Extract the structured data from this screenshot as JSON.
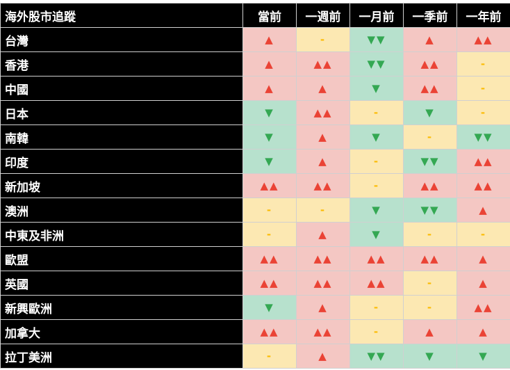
{
  "header": {
    "title": "海外股市追蹤",
    "columns": [
      "當前",
      "一週前",
      "一月前",
      "一季前",
      "一年前"
    ]
  },
  "colors": {
    "up_bg": "#f4c7c3",
    "up": "#ea4335",
    "down_bg": "#b7e1cd",
    "down": "#34a853",
    "flat_bg": "#fce8b2",
    "flat": "#fbbc04"
  },
  "rows": [
    {
      "market": "台灣",
      "values": [
        "▲",
        "-",
        "▼▼",
        "▲",
        "▲▲"
      ]
    },
    {
      "market": "香港",
      "values": [
        "▲",
        "▲▲",
        "▼▼",
        "▲▲",
        "-"
      ]
    },
    {
      "market": "中國",
      "values": [
        "▲",
        "▲",
        "▼",
        "▲▲",
        "-"
      ]
    },
    {
      "market": "日本",
      "values": [
        "▼",
        "▲▲",
        "-",
        "▼",
        "-"
      ]
    },
    {
      "market": "南韓",
      "values": [
        "▼",
        "▲",
        "▼",
        "-",
        "▼▼"
      ]
    },
    {
      "market": "印度",
      "values": [
        "▼",
        "▲",
        "-",
        "▼▼",
        "▲▲"
      ]
    },
    {
      "market": "新加坡",
      "values": [
        "▲▲",
        "▲▲",
        "-",
        "▲▲",
        "▲▲"
      ]
    },
    {
      "market": "澳洲",
      "values": [
        "-",
        "-",
        "▼",
        "▼▼",
        "▲"
      ]
    },
    {
      "market": "中東及非洲",
      "values": [
        "-",
        "▲",
        "▼",
        "-",
        "-"
      ]
    },
    {
      "market": "歐盟",
      "values": [
        "▲▲",
        "▲▲",
        "▲▲",
        "▲▲",
        "▲"
      ]
    },
    {
      "market": "英國",
      "values": [
        "▲▲",
        "▲▲",
        "▲▲",
        "-",
        "▲"
      ]
    },
    {
      "market": "新興歐洲",
      "values": [
        "▼",
        "▲",
        "-",
        "-",
        "▲▲"
      ]
    },
    {
      "market": "加拿大",
      "values": [
        "▲▲",
        "▲▲",
        "-",
        "▲",
        "▲"
      ]
    },
    {
      "market": "拉丁美洲",
      "values": [
        "-",
        "▲",
        "▼▼",
        "▼",
        "▼"
      ]
    }
  ]
}
